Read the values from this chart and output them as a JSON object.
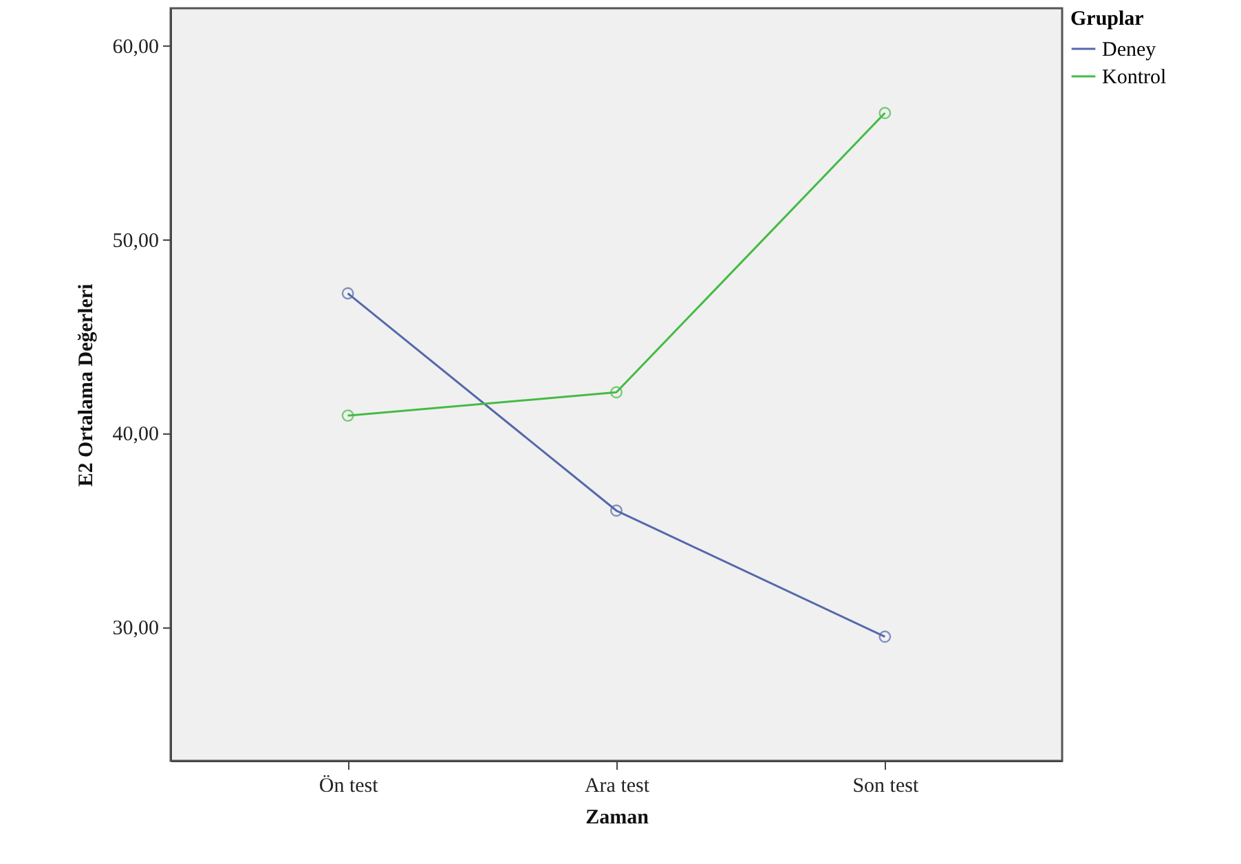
{
  "chart_data": {
    "type": "line",
    "xlabel": "Zaman",
    "ylabel": "E2 Ortalama Değerleri",
    "legend_title": "Gruplar",
    "categories": [
      "Ön test",
      "Ara test",
      "Son test"
    ],
    "series": [
      {
        "name": "Deney",
        "color": "#5468ac",
        "values": [
          47.2,
          36.0,
          29.5
        ]
      },
      {
        "name": "Kontrol",
        "color": "#44bb44",
        "values": [
          40.9,
          42.1,
          56.5
        ]
      }
    ],
    "ylim": [
      23.1,
      61.9
    ],
    "yticks": [
      {
        "value": 30,
        "label": "30,00"
      },
      {
        "value": 40,
        "label": "40,00"
      },
      {
        "value": 50,
        "label": "50,00"
      },
      {
        "value": 60,
        "label": "60,00"
      }
    ],
    "grid": false,
    "legend": "top right",
    "marker": "circle",
    "line_style": "solid"
  }
}
